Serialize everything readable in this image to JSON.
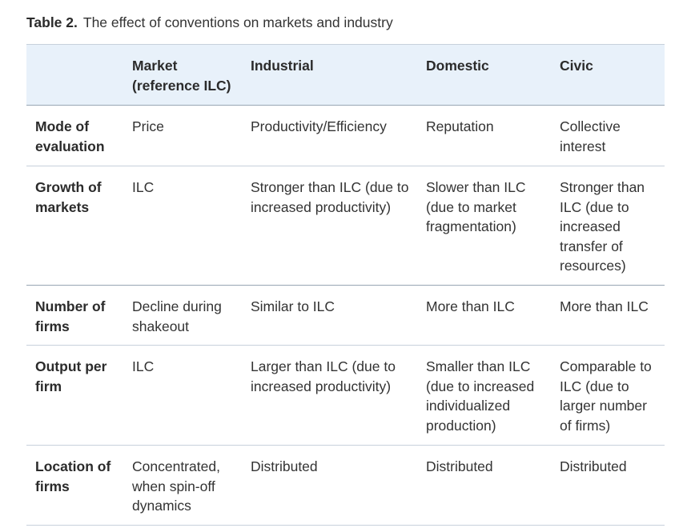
{
  "caption": {
    "label": "Table 2.",
    "text": "The effect of conventions on markets and industry"
  },
  "table": {
    "headers": [
      "",
      "Market (reference ILC)",
      "Industrial",
      "Domestic",
      "Civic"
    ],
    "rows": [
      {
        "label": "Mode of evaluation",
        "cells": [
          "Price",
          "Productivity/Efficiency",
          "Reputation",
          "Collective interest"
        ]
      },
      {
        "label": "Growth of markets",
        "cells": [
          "ILC",
          "Stronger than ILC (due to increased productivity)",
          "Slower than ILC (due to market fragmentation)",
          "Stronger than ILC (due to increased transfer of resources)"
        ]
      },
      {
        "label": "Number of firms",
        "cells": [
          "Decline during shakeout",
          "Similar to ILC",
          "More than ILC",
          "More than ILC"
        ]
      },
      {
        "label": "Output per firm",
        "cells": [
          "ILC",
          "Larger than ILC (due to increased productivity)",
          "Smaller than ILC (due to increased individualized production)",
          "Comparable to ILC (due to larger number of firms)"
        ]
      },
      {
        "label": "Location of firms",
        "cells": [
          "Concentrated, when spin-off dynamics",
          "Distributed",
          "Distributed",
          "Distributed"
        ]
      }
    ]
  }
}
